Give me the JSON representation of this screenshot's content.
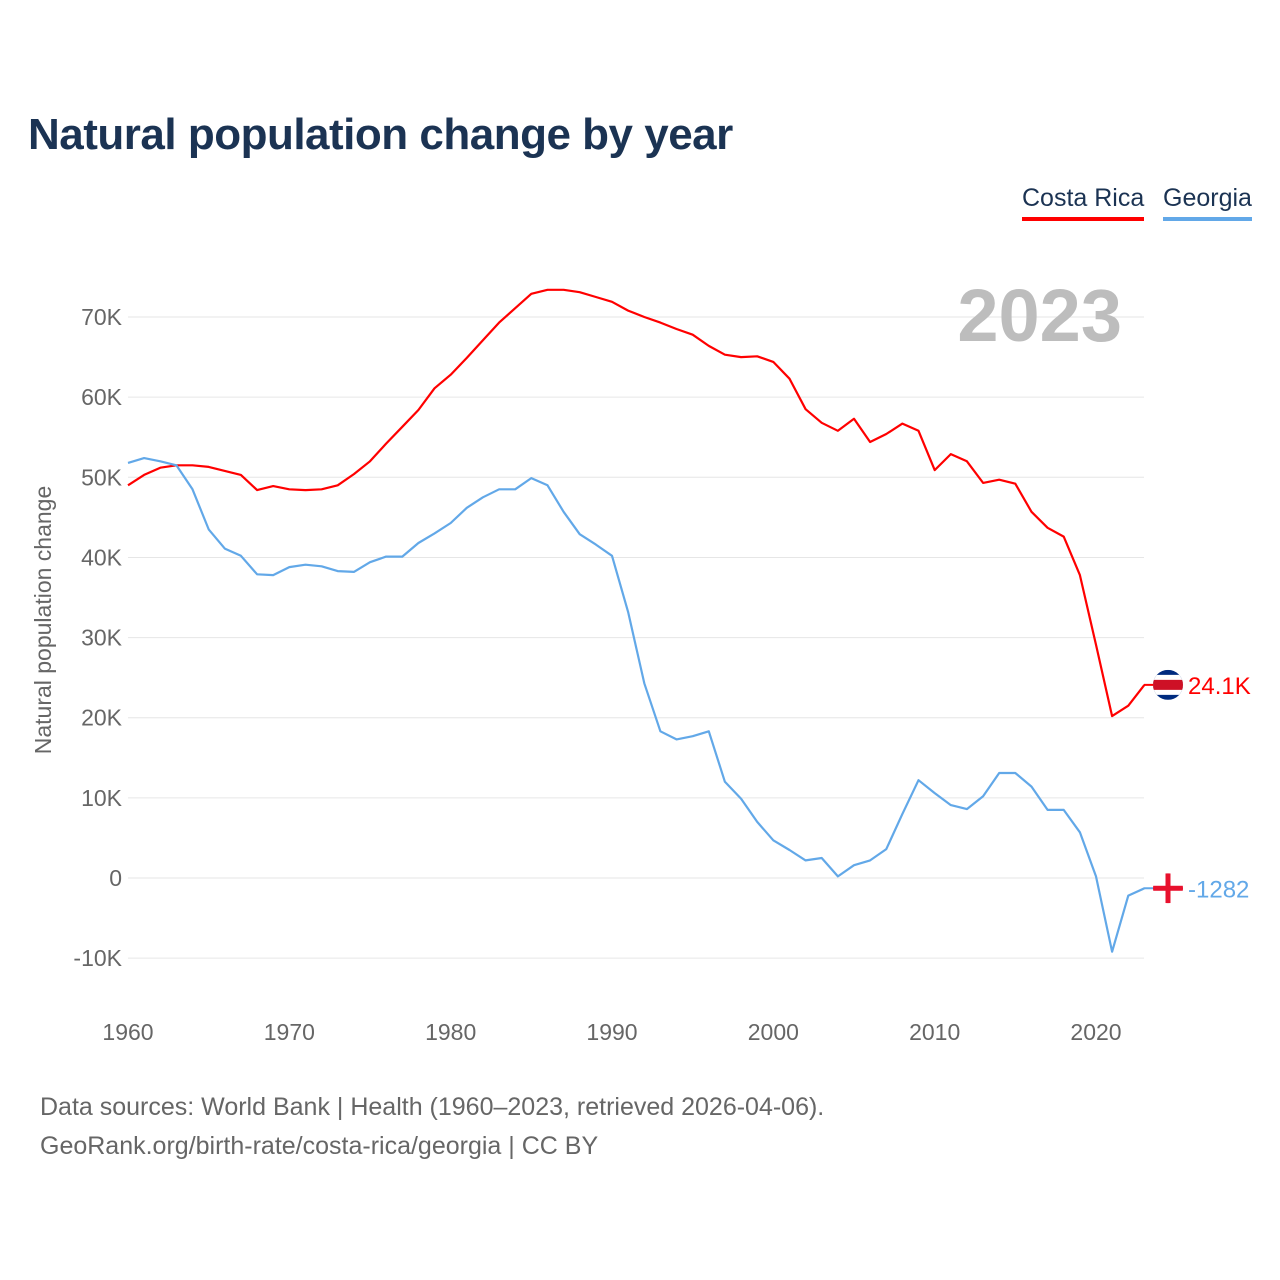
{
  "title": "Natural population change by year",
  "legend": [
    {
      "label": "Costa Rica"
    },
    {
      "label": "Georgia"
    }
  ],
  "year_label": "2023",
  "source_line1": "Data sources: World Bank | Health (1960–2023, retrieved 2026-04-06).",
  "source_line2": "GeoRank.org/birth-rate/costa-rica/georgia | CC BY",
  "chart_data": {
    "type": "line",
    "title": "Natural population change by year",
    "xlabel": "",
    "ylabel": "Natural population change",
    "xlim": [
      1960,
      2023
    ],
    "ylim": [
      -10000,
      70000
    ],
    "x_ticks": [
      "1960",
      "1970",
      "1980",
      "1990",
      "2000",
      "2010",
      "2020"
    ],
    "y_ticks": [
      {
        "v": -10000,
        "label": "-10K"
      },
      {
        "v": 0,
        "label": "0"
      },
      {
        "v": 10000,
        "label": "10K"
      },
      {
        "v": 20000,
        "label": "20K"
      },
      {
        "v": 30000,
        "label": "30K"
      },
      {
        "v": 40000,
        "label": "40K"
      },
      {
        "v": 50000,
        "label": "50K"
      },
      {
        "v": 60000,
        "label": "60K"
      },
      {
        "v": 70000,
        "label": "70K"
      }
    ],
    "grid": true,
    "legend_position": "top-right",
    "x_start": 1960,
    "series": [
      {
        "name": "Costa Rica",
        "color": "#ff0000",
        "end_label": "24.1K",
        "values": [
          49000,
          50300,
          51200,
          51500,
          51500,
          51300,
          50800,
          50300,
          48400,
          48900,
          48500,
          48400,
          48500,
          49000,
          50400,
          52000,
          54200,
          56300,
          58400,
          61100,
          62800,
          64900,
          67100,
          69300,
          71100,
          72900,
          73400,
          73400,
          73100,
          72500,
          71900,
          70800,
          70000,
          69300,
          68500,
          67800,
          66400,
          65300,
          65000,
          65100,
          64400,
          62300,
          58500,
          56800,
          55800,
          57300,
          54400,
          55400,
          56700,
          55800,
          50900,
          52900,
          52000,
          49300,
          49700,
          49200,
          45700,
          43700,
          42600,
          37800,
          29100,
          20200,
          21500,
          24100
        ]
      },
      {
        "name": "Georgia",
        "color": "#62a8e8",
        "end_label": "-1282",
        "values": [
          51800,
          52400,
          52000,
          51500,
          48500,
          43500,
          41100,
          40200,
          37900,
          37800,
          38800,
          39100,
          38900,
          38300,
          38200,
          39400,
          40100,
          40100,
          41800,
          43000,
          44300,
          46200,
          47500,
          48500,
          48500,
          49900,
          49000,
          45700,
          42900,
          41600,
          40200,
          33200,
          24300,
          18300,
          17300,
          17700,
          18300,
          12000,
          9900,
          7000,
          4700,
          3500,
          2200,
          2500,
          200,
          1600,
          2200,
          3600,
          8000,
          12200,
          10600,
          9100,
          8600,
          10200,
          13100,
          13100,
          11400,
          8500,
          8500,
          5700,
          200,
          -9200,
          -2200,
          -1282
        ]
      }
    ]
  }
}
